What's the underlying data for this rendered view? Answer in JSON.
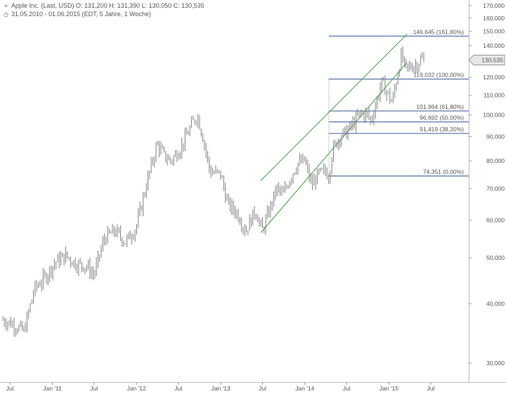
{
  "header": {
    "line1_icon": "chart-icon",
    "line1": "Apple Inc. (Last, USD)  O: 131,200  H: 131,390  L: 130,050  C: 130,535",
    "line2_icon": "clock-icon",
    "line2": "31.05.2010 - 01.06.2015 (EDT, 5 Jahre, 1 Woche)"
  },
  "chart_data": {
    "type": "line",
    "title": "Apple Inc. (Last, USD)",
    "scale": "log",
    "ylim": [
      28,
      170
    ],
    "y_ticks": [
      {
        "value": 30,
        "label": "30,000"
      },
      {
        "value": 40,
        "label": "40,000"
      },
      {
        "value": 50,
        "label": "50,000"
      },
      {
        "value": 60,
        "label": "60,000"
      },
      {
        "value": 70,
        "label": "70,000"
      },
      {
        "value": 80,
        "label": "80,000"
      },
      {
        "value": 90,
        "label": "90,000"
      },
      {
        "value": 100,
        "label": "100,000"
      },
      {
        "value": 110,
        "label": "110,000"
      },
      {
        "value": 120,
        "label": "120,000"
      },
      {
        "value": 130,
        "label": "130,000"
      },
      {
        "value": 140,
        "label": "140,000"
      },
      {
        "value": 150,
        "label": "150,000"
      },
      {
        "value": 160,
        "label": "160,000"
      },
      {
        "value": 170,
        "label": "170,000"
      }
    ],
    "x_range": [
      "2010-05-31",
      "2015-06-01"
    ],
    "x_ticks": [
      {
        "date": "2010-07-01",
        "label": "Jul"
      },
      {
        "date": "2011-01-01",
        "label": "Jan '11"
      },
      {
        "date": "2011-07-01",
        "label": "Jul"
      },
      {
        "date": "2012-01-01",
        "label": "Jan '12"
      },
      {
        "date": "2012-07-01",
        "label": "Jul"
      },
      {
        "date": "2013-01-01",
        "label": "Jan '13"
      },
      {
        "date": "2013-07-01",
        "label": "Jul"
      },
      {
        "date": "2014-01-01",
        "label": "Jan '14"
      },
      {
        "date": "2014-07-01",
        "label": "Jul"
      },
      {
        "date": "2015-01-01",
        "label": "Jan '15"
      },
      {
        "date": "2015-07-01",
        "label": "Jul"
      }
    ],
    "series": [
      {
        "values": [
          [
            "2010-05-31",
            37.0
          ],
          [
            "2010-07-15",
            36.2
          ],
          [
            "2010-08-31",
            35.0
          ],
          [
            "2010-10-15",
            43.0
          ],
          [
            "2010-11-30",
            45.5
          ],
          [
            "2011-01-15",
            49.0
          ],
          [
            "2011-02-28",
            50.5
          ],
          [
            "2011-04-15",
            48.5
          ],
          [
            "2011-05-31",
            48.0
          ],
          [
            "2011-06-30",
            46.0
          ],
          [
            "2011-08-15",
            55.0
          ],
          [
            "2011-09-30",
            57.0
          ],
          [
            "2011-11-15",
            54.0
          ],
          [
            "2011-12-31",
            58.0
          ],
          [
            "2012-02-15",
            72.0
          ],
          [
            "2012-03-31",
            87.0
          ],
          [
            "2012-04-30",
            82.0
          ],
          [
            "2012-05-31",
            80.0
          ],
          [
            "2012-07-15",
            86.0
          ],
          [
            "2012-08-31",
            96.0
          ],
          [
            "2012-09-21",
            100.0
          ],
          [
            "2012-10-15",
            90.0
          ],
          [
            "2012-11-15",
            76.0
          ],
          [
            "2012-12-31",
            75.0
          ],
          [
            "2013-01-31",
            65.0
          ],
          [
            "2013-03-15",
            62.0
          ],
          [
            "2013-04-19",
            57.0
          ],
          [
            "2013-05-31",
            63.0
          ],
          [
            "2013-06-30",
            57.0
          ],
          [
            "2013-07-31",
            63.0
          ],
          [
            "2013-08-31",
            70.0
          ],
          [
            "2013-09-30",
            68.0
          ],
          [
            "2013-10-31",
            74.0
          ],
          [
            "2013-11-30",
            79.0
          ],
          [
            "2013-12-31",
            80.0
          ],
          [
            "2014-01-31",
            71.0
          ],
          [
            "2014-02-28",
            75.0
          ],
          [
            "2014-03-31",
            76.0
          ],
          [
            "2014-04-15",
            74.5
          ],
          [
            "2014-04-30",
            84.0
          ],
          [
            "2014-05-31",
            90.0
          ],
          [
            "2014-06-30",
            92.0
          ],
          [
            "2014-07-31",
            96.0
          ],
          [
            "2014-08-31",
            101.0
          ],
          [
            "2014-09-30",
            100.0
          ],
          [
            "2014-10-15",
            97.0
          ],
          [
            "2014-11-30",
            117.0
          ],
          [
            "2014-12-31",
            110.0
          ],
          [
            "2015-01-15",
            106.0
          ],
          [
            "2015-01-31",
            117.0
          ],
          [
            "2015-02-23",
            133.0
          ],
          [
            "2015-03-15",
            125.0
          ],
          [
            "2015-04-15",
            127.0
          ],
          [
            "2015-05-01",
            128.0
          ],
          [
            "2015-05-20",
            131.0
          ],
          [
            "2015-06-01",
            130.535
          ]
        ]
      }
    ],
    "last_value_label": "130,535",
    "fibonacci": {
      "anchor_date": "2014-04-15",
      "end_date": "2015-06-01",
      "levels": [
        {
          "value": 146.645,
          "label": "146,645 (161,80%)"
        },
        {
          "value": 119.032,
          "label": "119,032 (100,00%)"
        },
        {
          "value": 101.964,
          "label": "101,964 (61,80%)"
        },
        {
          "value": 96.692,
          "label": "96,692 (50,00%)"
        },
        {
          "value": 91.419,
          "label": "91,419 (38,20%)"
        },
        {
          "value": 74.351,
          "label": "74,351 (0,00%)"
        }
      ]
    },
    "trend_channel": [
      {
        "start": [
          "2013-06-24",
          72.8
        ],
        "end": [
          "2015-03-20",
          148.0
        ]
      },
      {
        "start": [
          "2013-06-24",
          56.5
        ],
        "end": [
          "2015-03-20",
          129.0
        ]
      }
    ],
    "colors": {
      "price": "#808080",
      "fib": "#3a5a9c",
      "channel": "#3aa03a",
      "last_value_box": "#e6e6e6"
    },
    "grid": false,
    "legend": "none"
  }
}
